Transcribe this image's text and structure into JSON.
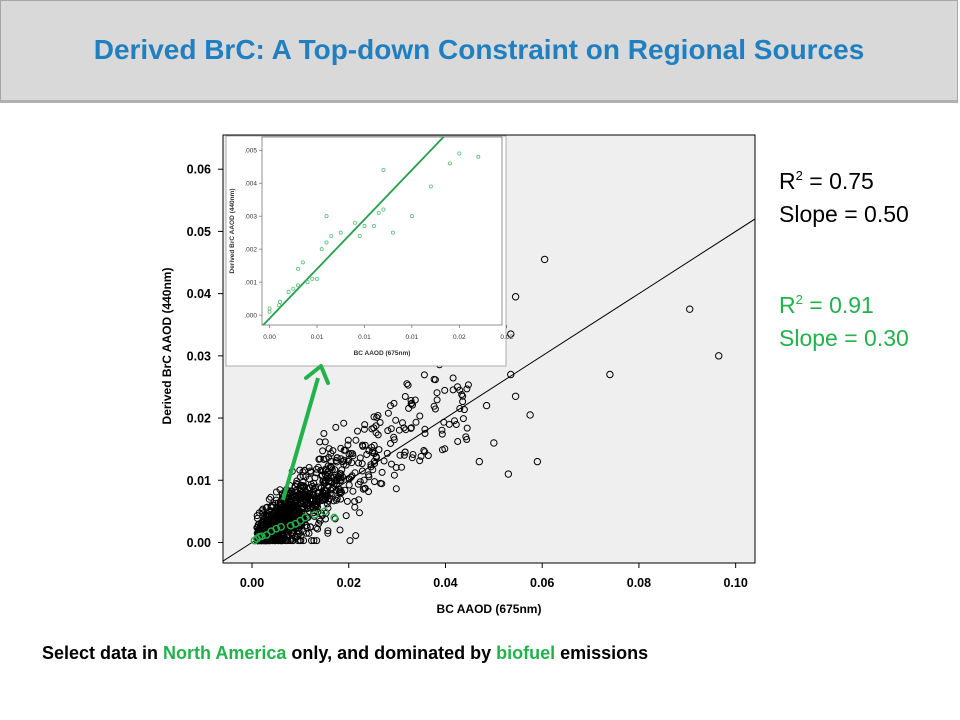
{
  "slide": {
    "title": "Derived BrC: A Top-down Constraint on Regional Sources",
    "caption": {
      "part1": "Select data in ",
      "highlight1": "North America",
      "part2": " only, and dominated by ",
      "highlight2": "biofuel",
      "part3": " emissions"
    }
  },
  "stats": {
    "all": {
      "r_prefix": "R",
      "r_sup": "2",
      "r_value": " = 0.75",
      "slope_text": "Slope = 0.50",
      "color": "#000000"
    },
    "subset": {
      "r_prefix": "R",
      "r_sup": "2",
      "r_value": " = 0.91",
      "slope_text": "Slope = 0.30",
      "color": "#22b24c"
    }
  },
  "chart_data": [
    {
      "type": "scatter",
      "xlabel": "BC AAOD (675nm)",
      "ylabel": "Derived BrC AAOD (440nm)",
      "xlim": [
        -0.006,
        0.104
      ],
      "ylim": [
        -0.0033,
        0.0655
      ],
      "xticks": [
        "0.00",
        "0.02",
        "0.04",
        "0.06",
        "0.08",
        "0.10"
      ],
      "yticks": [
        "0.00",
        "0.01",
        "0.02",
        "0.03",
        "0.04",
        "0.05",
        "0.06"
      ],
      "fit_line": {
        "slope": 0.5,
        "intercept": 0.0
      },
      "series": [
        {
          "marker": "open-circle",
          "color": "#000000",
          "dense_cluster": "points concentrated at BC 0.00-0.03, BrC 0.00-0.02",
          "outliers": [
            [
              0.0605,
              0.0455
            ],
            [
              0.0545,
              0.0395
            ],
            [
              0.0905,
              0.0375
            ],
            [
              0.0965,
              0.03
            ],
            [
              0.074,
              0.027
            ],
            [
              0.0535,
              0.0335
            ],
            [
              0.0575,
              0.0205
            ],
            [
              0.0545,
              0.0235
            ],
            [
              0.0535,
              0.027
            ],
            [
              0.059,
              0.013
            ],
            [
              0.053,
              0.011
            ],
            [
              0.047,
              0.013
            ],
            [
              0.05,
              0.016
            ],
            [
              0.0425,
              0.025
            ],
            [
              0.0485,
              0.022
            ]
          ]
        },
        {
          "marker": "open-circle",
          "color": "#22b24c",
          "points": [
            [
              0.0005,
              0.0003
            ],
            [
              0.001,
              0.0006
            ],
            [
              0.0015,
              0.0009
            ],
            [
              0.002,
              0.001
            ],
            [
              0.003,
              0.0012
            ],
            [
              0.004,
              0.0018
            ],
            [
              0.005,
              0.0022
            ],
            [
              0.006,
              0.0025
            ],
            [
              0.008,
              0.0027
            ],
            [
              0.009,
              0.003
            ],
            [
              0.01,
              0.0035
            ],
            [
              0.011,
              0.004
            ],
            [
              0.013,
              0.0045
            ],
            [
              0.015,
              0.005
            ],
            [
              0.017,
              0.004
            ]
          ]
        }
      ]
    },
    {
      "type": "scatter",
      "role": "inset",
      "xlabel": "BC AAOD (675nm)",
      "ylabel": "Derived BrC AAOD (440nm)",
      "xlim": [
        -0.0008,
        0.0245
      ],
      "ylim": [
        -0.0003,
        0.0054
      ],
      "xticks": [
        "0.00",
        "0.01",
        "0.01",
        "0.01",
        "0.02",
        "0.02"
      ],
      "xtick_values": [
        0.0,
        0.005,
        0.01,
        0.015,
        0.02,
        0.025
      ],
      "yticks": [
        ".000",
        ".001",
        ".002",
        ".003",
        ".004",
        ".005"
      ],
      "fit_line": {
        "slope": 0.3,
        "intercept": -0.0001,
        "color": "#22a04a"
      },
      "series": [
        {
          "marker": "open-circle",
          "color": "#5cbf7a",
          "points": [
            [
              0.0,
              0.0001
            ],
            [
              0.0,
              0.0002
            ],
            [
              0.001,
              0.0003
            ],
            [
              0.0011,
              0.0004
            ],
            [
              0.002,
              0.0007
            ],
            [
              0.0025,
              0.0008
            ],
            [
              0.003,
              0.0009
            ],
            [
              0.003,
              0.0014
            ],
            [
              0.0035,
              0.0016
            ],
            [
              0.004,
              0.001
            ],
            [
              0.0045,
              0.0011
            ],
            [
              0.005,
              0.0011
            ],
            [
              0.0055,
              0.002
            ],
            [
              0.006,
              0.0022
            ],
            [
              0.006,
              0.003
            ],
            [
              0.0065,
              0.0024
            ],
            [
              0.0075,
              0.0025
            ],
            [
              0.009,
              0.0028
            ],
            [
              0.0095,
              0.0024
            ],
            [
              0.01,
              0.0027
            ],
            [
              0.011,
              0.0027
            ],
            [
              0.0115,
              0.0031
            ],
            [
              0.012,
              0.0044
            ],
            [
              0.012,
              0.0032
            ],
            [
              0.013,
              0.0025
            ],
            [
              0.015,
              0.003
            ],
            [
              0.017,
              0.0039
            ],
            [
              0.019,
              0.0046
            ],
            [
              0.02,
              0.0049
            ],
            [
              0.022,
              0.0048
            ]
          ]
        }
      ]
    }
  ]
}
